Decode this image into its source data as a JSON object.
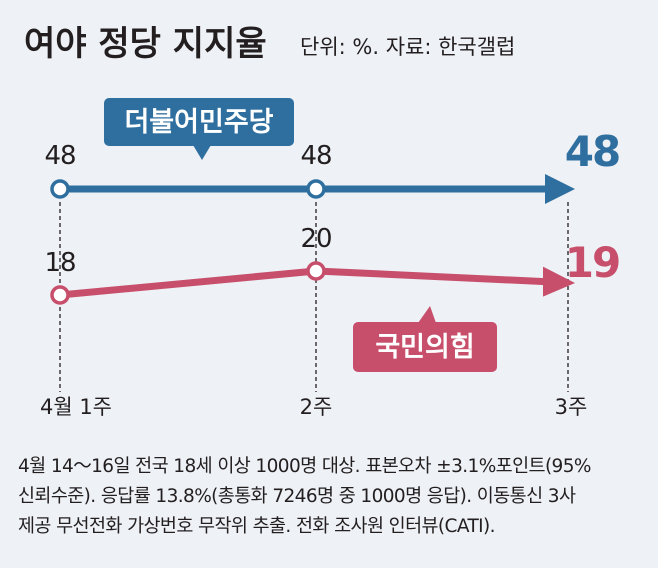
{
  "header": {
    "title": "여야 정당 지지율",
    "meta": "단위: %. 자료: 한국갤럽"
  },
  "chart_data": {
    "type": "line",
    "categories": [
      "4월 1주",
      "2주",
      "3주"
    ],
    "series": [
      {
        "name": "더불어민주당",
        "values": [
          48,
          48,
          48
        ],
        "labels": [
          "48",
          "48",
          "48"
        ],
        "color": "#2f6f9f"
      },
      {
        "name": "국민의힘",
        "values": [
          18,
          20,
          19
        ],
        "labels": [
          "18",
          "20",
          "19"
        ],
        "color": "#c74f6c"
      }
    ],
    "title": "여야 정당 지지율",
    "unit": "%",
    "source": "한국갤럽",
    "xlabel": "",
    "ylabel": ""
  },
  "colors": {
    "background": "#eef1f5",
    "democratic": "#2f6f9f",
    "ppp": "#c74f6c",
    "text": "#231f20"
  },
  "footnote": {
    "line1": "4월 14～16일 전국 18세 이상 1000명 대상. 표본오차 ±3.1%포인트(95%",
    "line2": "신뢰수준). 응답률 13.8%(총통화 7246명 중 1000명 응답). 이동통신 3사",
    "line3": "제공 무선전화 가상번호 무작위 추출. 전화 조사원 인터뷰(CATI)."
  }
}
